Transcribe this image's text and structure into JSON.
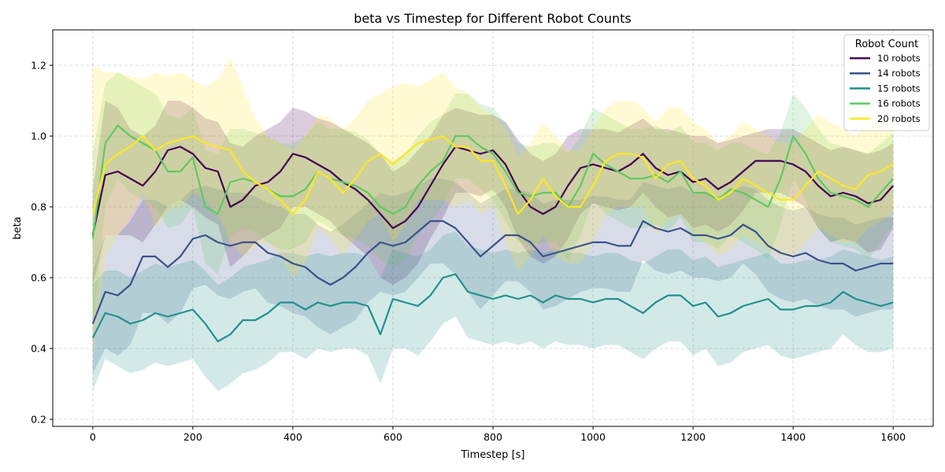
{
  "chart_data": {
    "type": "line",
    "title": "beta vs Timestep for Different Robot Counts",
    "xlabel": "Timestep [s]",
    "ylabel": "beta",
    "xlim": [
      -80,
      1680
    ],
    "ylim": [
      0.18,
      1.3
    ],
    "xticks": [
      0,
      200,
      400,
      600,
      800,
      1000,
      1200,
      1400,
      1600
    ],
    "xtick_labels": [
      "0",
      "200",
      "400",
      "600",
      "800",
      "1000",
      "1200",
      "1400",
      "1600"
    ],
    "yticks": [
      0.2,
      0.4,
      0.6,
      0.8,
      1.0,
      1.2
    ],
    "ytick_labels": [
      "0.2",
      "0.4",
      "0.6",
      "0.8",
      "1.0",
      "1.2"
    ],
    "grid": true,
    "legend_title": "Robot Count",
    "legend_position": "top-right",
    "shaded_band": "mean ± std",
    "x": [
      0,
      25,
      50,
      75,
      100,
      125,
      150,
      175,
      200,
      225,
      250,
      275,
      300,
      325,
      350,
      375,
      400,
      425,
      450,
      475,
      500,
      525,
      550,
      575,
      600,
      625,
      650,
      675,
      700,
      725,
      750,
      775,
      800,
      825,
      850,
      875,
      900,
      925,
      950,
      975,
      1000,
      1025,
      1050,
      1075,
      1100,
      1125,
      1150,
      1175,
      1200,
      1225,
      1250,
      1275,
      1300,
      1325,
      1350,
      1375,
      1400,
      1425,
      1450,
      1475,
      1500,
      1525,
      1550,
      1575,
      1600
    ],
    "series": [
      {
        "name": "10 robots",
        "color": "#440154",
        "values": [
          0.72,
          0.89,
          0.9,
          0.88,
          0.86,
          0.9,
          0.96,
          0.97,
          0.95,
          0.91,
          0.9,
          0.8,
          0.82,
          0.86,
          0.87,
          0.9,
          0.95,
          0.94,
          0.92,
          0.9,
          0.87,
          0.85,
          0.82,
          0.78,
          0.74,
          0.76,
          0.8,
          0.86,
          0.92,
          0.97,
          0.96,
          0.95,
          0.96,
          0.92,
          0.85,
          0.8,
          0.78,
          0.8,
          0.86,
          0.91,
          0.92,
          0.91,
          0.9,
          0.92,
          0.95,
          0.91,
          0.89,
          0.9,
          0.87,
          0.88,
          0.85,
          0.87,
          0.9,
          0.93,
          0.93,
          0.93,
          0.92,
          0.9,
          0.86,
          0.83,
          0.84,
          0.83,
          0.81,
          0.82,
          0.86
        ],
        "upper": [
          0.85,
          1.1,
          1.08,
          1.02,
          1.0,
          1.03,
          1.1,
          1.1,
          1.08,
          1.05,
          1.04,
          0.98,
          0.97,
          1.0,
          1.02,
          1.04,
          1.08,
          1.07,
          1.05,
          1.04,
          1.02,
          1.0,
          0.98,
          0.95,
          0.9,
          0.92,
          0.96,
          1.0,
          1.06,
          1.08,
          1.07,
          1.06,
          1.06,
          1.04,
          0.99,
          0.95,
          0.93,
          0.95,
          1.0,
          1.02,
          1.02,
          1.02,
          1.01,
          1.03,
          1.05,
          1.02,
          1.02,
          1.01,
          1.0,
          1.0,
          0.98,
          0.99,
          1.0,
          1.01,
          1.02,
          1.02,
          1.02,
          1.0,
          0.98,
          0.96,
          0.97,
          0.96,
          0.95,
          0.96,
          0.98
        ],
        "lower": [
          0.58,
          0.72,
          0.72,
          0.72,
          0.7,
          0.75,
          0.8,
          0.82,
          0.8,
          0.77,
          0.75,
          0.63,
          0.66,
          0.7,
          0.72,
          0.74,
          0.8,
          0.8,
          0.78,
          0.76,
          0.72,
          0.69,
          0.66,
          0.6,
          0.58,
          0.6,
          0.64,
          0.71,
          0.77,
          0.84,
          0.84,
          0.83,
          0.85,
          0.8,
          0.71,
          0.66,
          0.64,
          0.66,
          0.71,
          0.78,
          0.81,
          0.8,
          0.79,
          0.8,
          0.84,
          0.8,
          0.77,
          0.78,
          0.74,
          0.75,
          0.73,
          0.75,
          0.79,
          0.84,
          0.84,
          0.84,
          0.82,
          0.8,
          0.74,
          0.7,
          0.71,
          0.7,
          0.67,
          0.68,
          0.74
        ]
      },
      {
        "name": "14 robots",
        "color": "#3b528b",
        "values": [
          0.47,
          0.56,
          0.55,
          0.58,
          0.66,
          0.66,
          0.63,
          0.66,
          0.71,
          0.72,
          0.7,
          0.69,
          0.7,
          0.7,
          0.67,
          0.66,
          0.64,
          0.63,
          0.6,
          0.58,
          0.6,
          0.63,
          0.67,
          0.7,
          0.69,
          0.7,
          0.73,
          0.76,
          0.76,
          0.74,
          0.7,
          0.66,
          0.69,
          0.72,
          0.72,
          0.7,
          0.66,
          0.67,
          0.68,
          0.69,
          0.7,
          0.7,
          0.69,
          0.69,
          0.76,
          0.74,
          0.73,
          0.74,
          0.72,
          0.72,
          0.71,
          0.72,
          0.75,
          0.73,
          0.69,
          0.67,
          0.66,
          0.67,
          0.65,
          0.64,
          0.64,
          0.62,
          0.63,
          0.64,
          0.64
        ],
        "upper": [
          0.62,
          0.72,
          0.72,
          0.76,
          0.82,
          0.82,
          0.8,
          0.82,
          0.85,
          0.86,
          0.85,
          0.84,
          0.84,
          0.83,
          0.81,
          0.8,
          0.78,
          0.78,
          0.75,
          0.73,
          0.75,
          0.78,
          0.81,
          0.84,
          0.83,
          0.84,
          0.86,
          0.88,
          0.88,
          0.87,
          0.84,
          0.81,
          0.83,
          0.85,
          0.85,
          0.84,
          0.81,
          0.82,
          0.82,
          0.82,
          0.83,
          0.83,
          0.82,
          0.82,
          0.87,
          0.86,
          0.85,
          0.86,
          0.84,
          0.84,
          0.83,
          0.84,
          0.86,
          0.85,
          0.82,
          0.8,
          0.79,
          0.8,
          0.78,
          0.77,
          0.77,
          0.75,
          0.76,
          0.77,
          0.77
        ],
        "lower": [
          0.33,
          0.4,
          0.38,
          0.41,
          0.5,
          0.5,
          0.47,
          0.5,
          0.57,
          0.58,
          0.55,
          0.54,
          0.56,
          0.57,
          0.53,
          0.52,
          0.5,
          0.49,
          0.46,
          0.44,
          0.46,
          0.48,
          0.53,
          0.56,
          0.55,
          0.56,
          0.6,
          0.64,
          0.64,
          0.61,
          0.56,
          0.51,
          0.55,
          0.59,
          0.59,
          0.56,
          0.51,
          0.52,
          0.54,
          0.56,
          0.57,
          0.57,
          0.56,
          0.56,
          0.65,
          0.62,
          0.61,
          0.62,
          0.6,
          0.6,
          0.59,
          0.6,
          0.64,
          0.61,
          0.56,
          0.54,
          0.53,
          0.54,
          0.52,
          0.51,
          0.51,
          0.49,
          0.5,
          0.51,
          0.51
        ]
      },
      {
        "name": "15 robots",
        "color": "#21918c",
        "values": [
          0.43,
          0.5,
          0.49,
          0.47,
          0.48,
          0.5,
          0.49,
          0.5,
          0.51,
          0.47,
          0.42,
          0.44,
          0.48,
          0.48,
          0.5,
          0.53,
          0.53,
          0.51,
          0.53,
          0.52,
          0.53,
          0.53,
          0.52,
          0.44,
          0.54,
          0.53,
          0.52,
          0.55,
          0.6,
          0.61,
          0.56,
          0.55,
          0.54,
          0.55,
          0.54,
          0.55,
          0.53,
          0.55,
          0.54,
          0.54,
          0.53,
          0.54,
          0.54,
          0.52,
          0.5,
          0.53,
          0.55,
          0.55,
          0.52,
          0.53,
          0.49,
          0.5,
          0.52,
          0.53,
          0.54,
          0.51,
          0.51,
          0.52,
          0.52,
          0.53,
          0.56,
          0.54,
          0.53,
          0.52,
          0.53
        ],
        "upper": [
          0.58,
          0.62,
          0.62,
          0.6,
          0.62,
          0.64,
          0.63,
          0.64,
          0.65,
          0.62,
          0.58,
          0.6,
          0.63,
          0.64,
          0.65,
          0.67,
          0.67,
          0.66,
          0.67,
          0.66,
          0.67,
          0.67,
          0.66,
          0.6,
          0.68,
          0.67,
          0.66,
          0.68,
          0.72,
          0.73,
          0.69,
          0.68,
          0.67,
          0.68,
          0.67,
          0.68,
          0.67,
          0.68,
          0.67,
          0.67,
          0.66,
          0.67,
          0.67,
          0.65,
          0.64,
          0.66,
          0.68,
          0.68,
          0.65,
          0.66,
          0.63,
          0.64,
          0.65,
          0.66,
          0.67,
          0.64,
          0.64,
          0.65,
          0.65,
          0.66,
          0.68,
          0.67,
          0.66,
          0.65,
          0.66
        ],
        "lower": [
          0.28,
          0.37,
          0.35,
          0.33,
          0.34,
          0.36,
          0.35,
          0.36,
          0.37,
          0.32,
          0.28,
          0.3,
          0.33,
          0.34,
          0.36,
          0.39,
          0.39,
          0.37,
          0.4,
          0.39,
          0.4,
          0.4,
          0.38,
          0.3,
          0.4,
          0.4,
          0.38,
          0.42,
          0.47,
          0.49,
          0.43,
          0.42,
          0.41,
          0.42,
          0.41,
          0.42,
          0.4,
          0.42,
          0.41,
          0.41,
          0.4,
          0.41,
          0.41,
          0.39,
          0.37,
          0.4,
          0.42,
          0.42,
          0.38,
          0.4,
          0.35,
          0.36,
          0.39,
          0.4,
          0.41,
          0.38,
          0.37,
          0.38,
          0.39,
          0.4,
          0.44,
          0.41,
          0.39,
          0.39,
          0.4
        ]
      },
      {
        "name": "16 robots",
        "color": "#5ec962",
        "values": [
          0.71,
          0.98,
          1.03,
          1.0,
          0.98,
          0.96,
          0.9,
          0.9,
          0.94,
          0.8,
          0.78,
          0.87,
          0.88,
          0.87,
          0.85,
          0.83,
          0.83,
          0.85,
          0.9,
          0.88,
          0.87,
          0.86,
          0.84,
          0.8,
          0.78,
          0.8,
          0.86,
          0.9,
          0.93,
          1.0,
          1.0,
          0.97,
          0.95,
          0.9,
          0.84,
          0.83,
          0.84,
          0.84,
          0.8,
          0.86,
          0.95,
          0.92,
          0.9,
          0.88,
          0.88,
          0.89,
          0.87,
          0.9,
          0.84,
          0.84,
          0.82,
          0.85,
          0.84,
          0.82,
          0.8,
          0.88,
          1.0,
          0.95,
          0.88,
          0.84,
          0.83,
          0.82,
          0.8,
          0.84,
          0.88
        ],
        "upper": [
          0.95,
          1.15,
          1.18,
          1.16,
          1.14,
          1.12,
          1.06,
          1.05,
          1.08,
          0.96,
          0.95,
          1.02,
          1.02,
          1.01,
          1.0,
          0.98,
          0.98,
          1.0,
          1.04,
          1.02,
          1.02,
          1.01,
          0.99,
          0.95,
          0.93,
          0.95,
          1.0,
          1.04,
          1.06,
          1.12,
          1.12,
          1.09,
          1.08,
          1.04,
          0.98,
          0.97,
          0.98,
          0.98,
          0.95,
          1.0,
          1.08,
          1.06,
          1.04,
          1.02,
          1.02,
          1.03,
          1.01,
          1.03,
          0.98,
          0.98,
          0.96,
          0.98,
          0.98,
          0.96,
          0.95,
          1.01,
          1.12,
          1.08,
          1.02,
          0.98,
          0.97,
          0.96,
          0.95,
          0.98,
          1.01
        ],
        "lower": [
          0.45,
          0.8,
          0.88,
          0.84,
          0.82,
          0.8,
          0.74,
          0.75,
          0.8,
          0.64,
          0.61,
          0.72,
          0.74,
          0.73,
          0.7,
          0.68,
          0.68,
          0.7,
          0.76,
          0.74,
          0.72,
          0.71,
          0.69,
          0.65,
          0.63,
          0.65,
          0.72,
          0.76,
          0.8,
          0.88,
          0.88,
          0.85,
          0.82,
          0.76,
          0.7,
          0.69,
          0.7,
          0.7,
          0.65,
          0.72,
          0.82,
          0.78,
          0.76,
          0.74,
          0.74,
          0.75,
          0.73,
          0.77,
          0.7,
          0.7,
          0.68,
          0.72,
          0.7,
          0.68,
          0.65,
          0.75,
          0.88,
          0.82,
          0.74,
          0.7,
          0.69,
          0.68,
          0.65,
          0.7,
          0.75
        ]
      },
      {
        "name": "20 robots",
        "color": "#fde725",
        "values": [
          0.78,
          0.92,
          0.95,
          0.97,
          1.0,
          0.96,
          0.98,
          0.99,
          1.0,
          0.98,
          0.97,
          0.96,
          0.9,
          0.87,
          0.85,
          0.82,
          0.78,
          0.82,
          0.9,
          0.88,
          0.84,
          0.88,
          0.93,
          0.95,
          0.92,
          0.95,
          0.98,
          0.99,
          1.0,
          0.97,
          0.97,
          0.93,
          0.93,
          0.86,
          0.78,
          0.82,
          0.88,
          0.83,
          0.8,
          0.8,
          0.86,
          0.93,
          0.95,
          0.95,
          0.94,
          0.88,
          0.92,
          0.93,
          0.88,
          0.86,
          0.82,
          0.84,
          0.88,
          0.86,
          0.84,
          0.82,
          0.82,
          0.86,
          0.9,
          0.88,
          0.86,
          0.85,
          0.89,
          0.9,
          0.92
        ],
        "upper": [
          1.2,
          1.18,
          1.18,
          1.17,
          1.16,
          1.18,
          1.17,
          1.18,
          1.16,
          1.14,
          1.16,
          1.22,
          1.14,
          1.05,
          1.0,
          0.98,
          0.96,
          1.0,
          1.06,
          1.05,
          1.02,
          1.05,
          1.1,
          1.12,
          1.14,
          1.15,
          1.14,
          1.16,
          1.18,
          1.14,
          1.12,
          1.08,
          1.06,
          1.02,
          0.94,
          0.98,
          1.04,
          1.0,
          0.96,
          0.96,
          1.02,
          1.08,
          1.1,
          1.1,
          1.08,
          1.04,
          1.08,
          1.08,
          1.04,
          1.02,
          0.98,
          1.0,
          1.04,
          1.02,
          1.0,
          0.98,
          0.98,
          1.02,
          1.06,
          1.04,
          1.02,
          1.0,
          1.04,
          1.04,
          1.05
        ],
        "lower": [
          0.36,
          0.66,
          0.72,
          0.77,
          0.84,
          0.74,
          0.79,
          0.8,
          0.84,
          0.82,
          0.78,
          0.7,
          0.66,
          0.69,
          0.7,
          0.66,
          0.6,
          0.64,
          0.74,
          0.71,
          0.66,
          0.71,
          0.76,
          0.78,
          0.7,
          0.75,
          0.82,
          0.82,
          0.82,
          0.8,
          0.82,
          0.78,
          0.8,
          0.7,
          0.62,
          0.66,
          0.72,
          0.66,
          0.64,
          0.64,
          0.7,
          0.78,
          0.8,
          0.8,
          0.8,
          0.72,
          0.76,
          0.78,
          0.72,
          0.7,
          0.66,
          0.68,
          0.72,
          0.7,
          0.68,
          0.66,
          0.66,
          0.7,
          0.74,
          0.72,
          0.7,
          0.7,
          0.74,
          0.76,
          0.79
        ]
      }
    ]
  }
}
